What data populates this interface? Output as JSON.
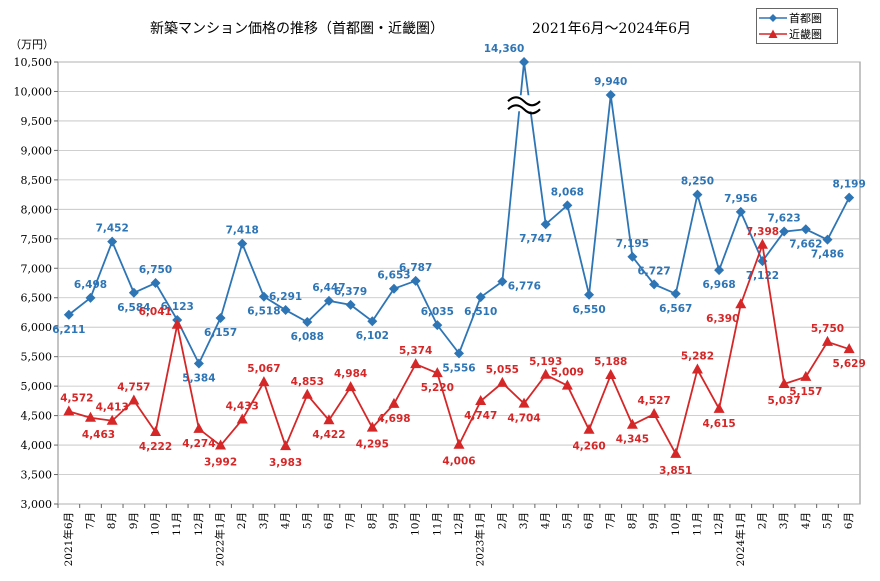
{
  "title": "新築マンション価格の推移（首都圏・近畿圏）",
  "period": "2021年6月～2024年6月",
  "unit": "（万円）",
  "colors": {
    "shutoken": "#2e75b6",
    "kinki": "#d62728"
  },
  "chart_data": {
    "type": "line",
    "categories": [
      "2021年6月",
      "7月",
      "8月",
      "9月",
      "10月",
      "11月",
      "12月",
      "2022年1月",
      "2月",
      "3月",
      "4月",
      "5月",
      "6月",
      "7月",
      "8月",
      "9月",
      "10月",
      "11月",
      "12月",
      "2023年1月",
      "2月",
      "3月",
      "4月",
      "5月",
      "6月",
      "7月",
      "8月",
      "9月",
      "10月",
      "11月",
      "12月",
      "2024年1月",
      "2月",
      "3月",
      "4月",
      "5月",
      "6月"
    ],
    "ylim": [
      3000,
      10500
    ],
    "yticks": [
      3000,
      3500,
      4000,
      4500,
      5000,
      5500,
      6000,
      6500,
      7000,
      7500,
      8000,
      8500,
      9000,
      9500,
      10000,
      10500
    ],
    "ytick_labels": [
      "3,000",
      "3,500",
      "4,000",
      "4,500",
      "5,000",
      "5,500",
      "6,000",
      "6,500",
      "7,000",
      "7,500",
      "8,000",
      "8,500",
      "9,000",
      "9,500",
      "10,000",
      "10,500"
    ],
    "grid": true,
    "legend_position": "top-right",
    "axis_break": "y-axis break (≈) at the 2023年3月 peak; plotted at top, actual 14,360",
    "series": [
      {
        "name": "首都圏",
        "color": "#2e75b6",
        "marker": "diamond",
        "values": [
          6211,
          6498,
          7452,
          6584,
          6750,
          6123,
          5384,
          6157,
          7418,
          6518,
          6291,
          6088,
          6447,
          6379,
          6102,
          6653,
          6787,
          6035,
          5556,
          6510,
          6776,
          14360,
          7747,
          8068,
          6550,
          9940,
          7195,
          6727,
          6567,
          8250,
          6968,
          7956,
          7122,
          7623,
          7662,
          7486,
          8199
        ],
        "labels": [
          "6,211",
          "6,498",
          "7,452",
          "6,584",
          "6,750",
          "6,123",
          "5,384",
          "6,157",
          "7,418",
          "6,518",
          "6,291",
          "6,088",
          "6,447",
          "6,379",
          "6,102",
          "6,653",
          "6,787",
          "6,035",
          "5,556",
          "6,510",
          "6,776",
          "14,360",
          "7,747",
          "8,068",
          "6,550",
          "9,940",
          "7,195",
          "6,727",
          "6,567",
          "8,250",
          "6,968",
          "7,956",
          "7,122",
          "7,623",
          "7,662",
          "7,486",
          "8,199"
        ]
      },
      {
        "name": "近畿圏",
        "color": "#d62728",
        "marker": "triangle",
        "values": [
          4572,
          4463,
          4413,
          4757,
          4222,
          6041,
          4274,
          3992,
          4433,
          5067,
          3983,
          4853,
          4422,
          4984,
          4295,
          4698,
          5374,
          5220,
          4006,
          4747,
          5055,
          4704,
          5193,
          5009,
          4260,
          5188,
          4345,
          4527,
          3851,
          5282,
          4615,
          6390,
          7398,
          5037,
          5157,
          5750,
          5629
        ],
        "labels": [
          "4,572",
          "4,463",
          "4,413",
          "4,757",
          "4,222",
          "6,041",
          "4,274",
          "3,992",
          "4,433",
          "5,067",
          "3,983",
          "4,853",
          "4,422",
          "4,984",
          "4,295",
          "4,698",
          "5,374",
          "5,220",
          "4,006",
          "4,747",
          "5,055",
          "4,704",
          "5,193",
          "5,009",
          "4,260",
          "5,188",
          "4,345",
          "4,527",
          "3,851",
          "5,282",
          "4,615",
          "6,390",
          "7,398",
          "5,037",
          "5,157",
          "5,750",
          "5,629"
        ]
      }
    ]
  }
}
